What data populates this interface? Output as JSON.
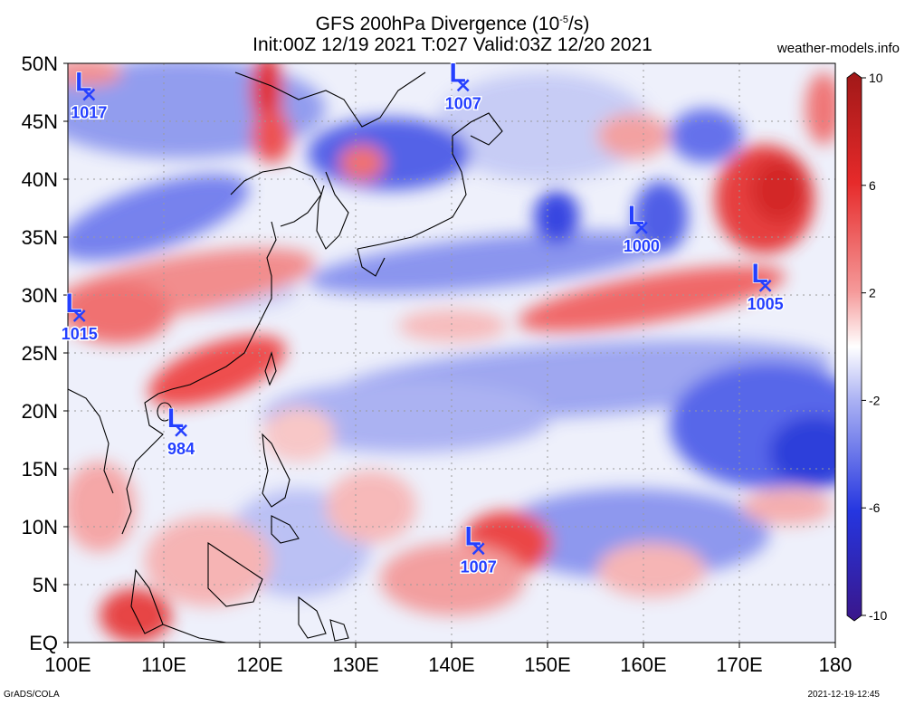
{
  "header": {
    "title_line1": "GFS 200hPa Divergence (10",
    "title_exp": "-5",
    "title_line1_end": "/s)",
    "title_line2": "Init:00Z 12/19 2021 T:027 Valid:03Z 12/20 2021",
    "site": "weather-models.info"
  },
  "footer": {
    "left": "GrADS/COLA",
    "right": "2021-12-19-12:45"
  },
  "axes": {
    "lat_labels": [
      "50N",
      "45N",
      "40N",
      "35N",
      "30N",
      "25N",
      "20N",
      "15N",
      "10N",
      "5N",
      "EQ"
    ],
    "lat_values": [
      50,
      45,
      40,
      35,
      30,
      25,
      20,
      15,
      10,
      5,
      0
    ],
    "lon_labels": [
      "100E",
      "110E",
      "120E",
      "130E",
      "140E",
      "150E",
      "160E",
      "170E",
      "180"
    ],
    "lon_values": [
      100,
      110,
      120,
      130,
      140,
      150,
      160,
      170,
      180
    ]
  },
  "colorbar": {
    "labels": [
      "10",
      "6",
      "2",
      "-2",
      "-6",
      "-10"
    ],
    "values": [
      10,
      6,
      2,
      -2,
      -6,
      -10
    ],
    "colors": [
      "#b31a1a",
      "#e8262a",
      "#f47a7a",
      "#fde0e0",
      "#ffffff",
      "#dfe2fb",
      "#7b86f0",
      "#2e3ee6",
      "#1b1fb8",
      "#3a1a8a"
    ]
  },
  "lows": [
    {
      "label": "1017",
      "lon": 102.2,
      "lat": 47.3
    },
    {
      "label": "1007",
      "lon": 141.2,
      "lat": 48.1
    },
    {
      "label": "1000",
      "lon": 159.8,
      "lat": 35.8
    },
    {
      "label": "1005",
      "lon": 172.7,
      "lat": 30.8
    },
    {
      "label": "1015",
      "lon": 101.2,
      "lat": 28.2
    },
    {
      "label": "984",
      "lon": 111.8,
      "lat": 18.3
    },
    {
      "label": "1007",
      "lon": 142.8,
      "lat": 8.1
    }
  ]
}
